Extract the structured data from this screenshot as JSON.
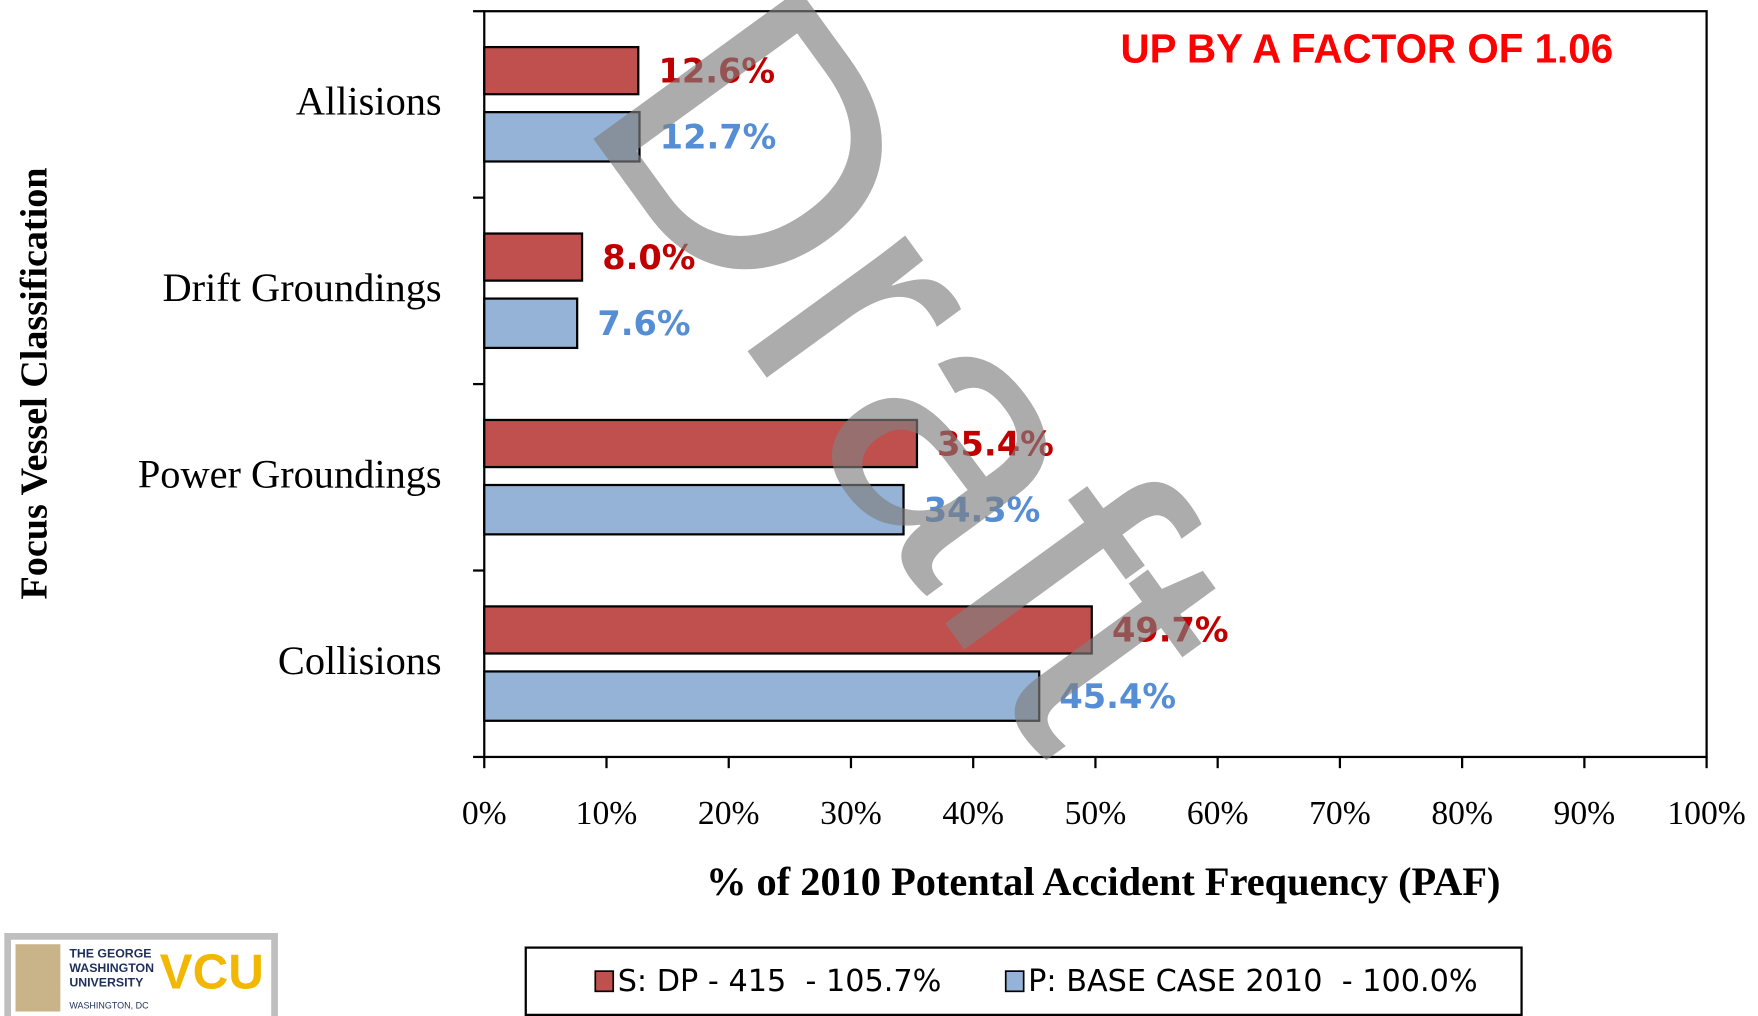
{
  "chart_data": {
    "type": "barh",
    "categories": [
      "Allisions",
      "Drift Groundings",
      "Power Groundings",
      "Collisions"
    ],
    "series": [
      {
        "name": "S: DP - 415  - 105.7%",
        "color": "#c0504d",
        "label_color": "#c00000",
        "values": [
          12.6,
          8.0,
          35.4,
          49.7
        ],
        "value_labels": [
          "12.6%",
          "8.0%",
          "35.4%",
          "49.7%"
        ]
      },
      {
        "name": "P: BASE CASE 2010  - 100.0%",
        "color": "#95b3d7",
        "label_color": "#558ed5",
        "values": [
          12.7,
          7.6,
          34.3,
          45.4
        ],
        "value_labels": [
          "12.7%",
          "7.6%",
          "34.3%",
          "45.4%"
        ]
      }
    ],
    "xlim": [
      0,
      100
    ],
    "xticks": [
      {
        "value": 0,
        "label": "0%"
      },
      {
        "value": 10,
        "label": "10%"
      },
      {
        "value": 20,
        "label": "20%"
      },
      {
        "value": 30,
        "label": "30%"
      },
      {
        "value": 40,
        "label": "40%"
      },
      {
        "value": 50,
        "label": "50%"
      },
      {
        "value": 60,
        "label": "60%"
      },
      {
        "value": 70,
        "label": "70%"
      },
      {
        "value": 80,
        "label": "80%"
      },
      {
        "value": 90,
        "label": "90%"
      },
      {
        "value": 100,
        "label": "100%"
      }
    ],
    "xlabel": "% of 2010 Potental Accident Frequency (PAF)",
    "ylabel": "Focus Vessel Classification",
    "annotation": "UP BY A FACTOR OF 1.06",
    "watermark": "Draft",
    "logo": {
      "line1": "THE GEORGE",
      "line2": "WASHINGTON",
      "line3": "UNIVERSITY",
      "line4": "WASHINGTON, DC",
      "mark": "VCU"
    }
  }
}
